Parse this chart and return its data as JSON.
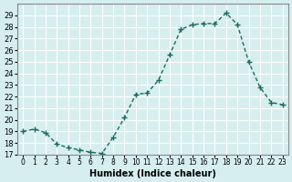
{
  "x": [
    0,
    1,
    2,
    3,
    4,
    5,
    6,
    7,
    8,
    9,
    10,
    11,
    12,
    13,
    14,
    15,
    16,
    17,
    18,
    19,
    20,
    21,
    22,
    23
  ],
  "y": [
    19,
    19.2,
    18.9,
    17.9,
    17.6,
    17.4,
    17.2,
    17.1,
    18.5,
    20.2,
    22.2,
    22.3,
    23.4,
    25.6,
    27.8,
    28.2,
    28.3,
    28.3,
    29.2,
    28.2,
    25.0,
    22.8,
    21.5,
    21.3
  ],
  "xlim": [
    -0.5,
    23.5
  ],
  "ylim": [
    17,
    30
  ],
  "yticks": [
    17,
    18,
    19,
    20,
    21,
    22,
    23,
    24,
    25,
    26,
    27,
    28,
    29
  ],
  "xtick_labels": [
    "0",
    "1",
    "2",
    "3",
    "4",
    "5",
    "6",
    "7",
    "8",
    "9",
    "10",
    "11",
    "12",
    "13",
    "14",
    "15",
    "16",
    "17",
    "18",
    "19",
    "20",
    "21",
    "22",
    "23"
  ],
  "xlabel": "Humidex (Indice chaleur)",
  "line_color": "#1a6b5a",
  "marker": "+",
  "bg_color": "#d6eeee",
  "grid_color": "#ffffff"
}
